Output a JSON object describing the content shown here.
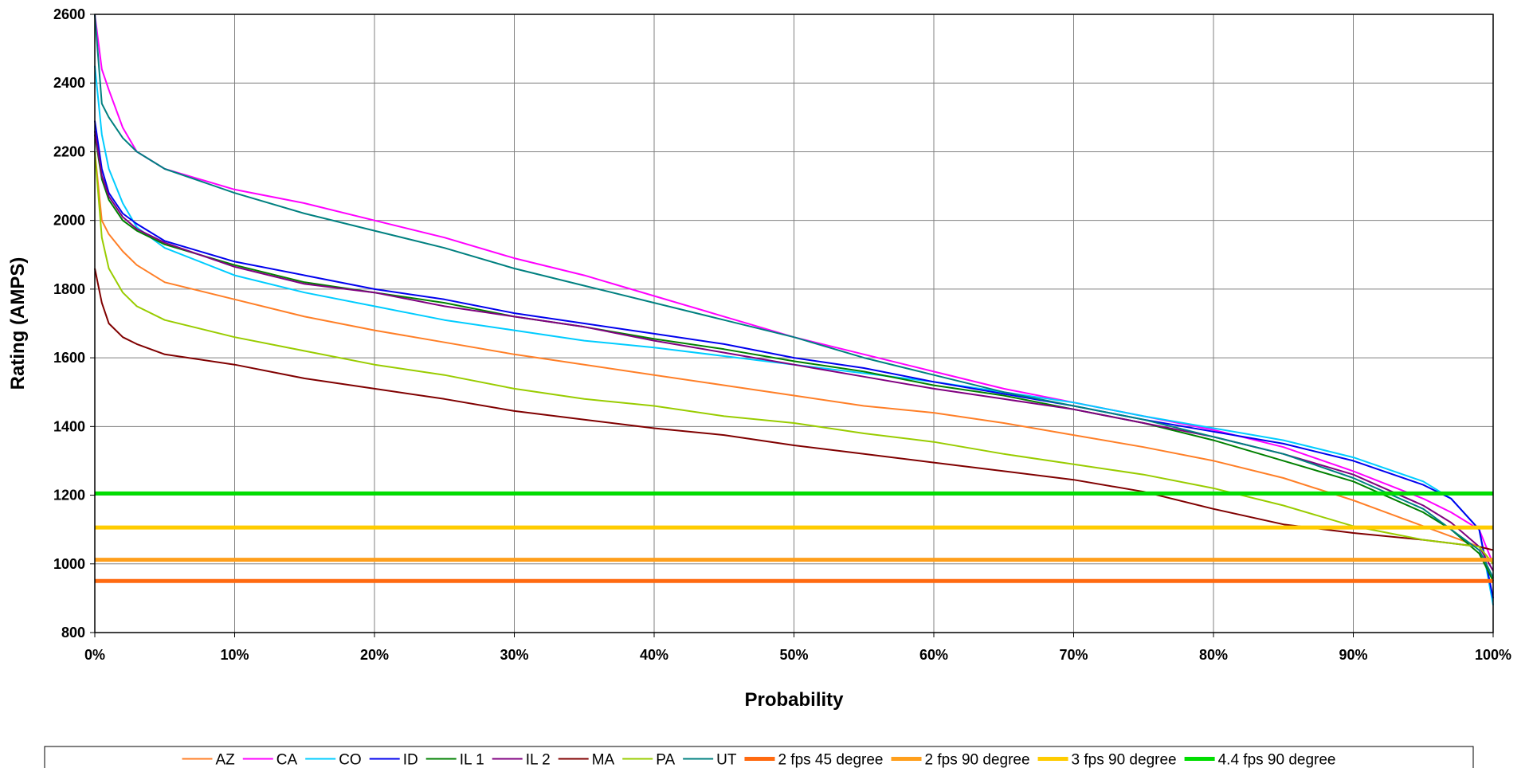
{
  "chart_data": {
    "type": "line",
    "xlabel": "Probability",
    "ylabel": "Rating (AMPS)",
    "xlim": [
      0,
      100
    ],
    "ylim": [
      800,
      2600
    ],
    "x_ticks": [
      "0%",
      "10%",
      "20%",
      "30%",
      "40%",
      "50%",
      "60%",
      "70%",
      "80%",
      "90%",
      "100%"
    ],
    "y_ticks": [
      "800",
      "1000",
      "1200",
      "1400",
      "1600",
      "1800",
      "2000",
      "2200",
      "2400",
      "2600"
    ],
    "grid": true,
    "legend_position": "bottom",
    "x": [
      0,
      0.5,
      1,
      2,
      3,
      5,
      10,
      15,
      20,
      25,
      30,
      35,
      40,
      45,
      50,
      55,
      60,
      65,
      70,
      75,
      80,
      85,
      90,
      95,
      97,
      99,
      100
    ],
    "series": [
      {
        "name": "AZ",
        "color": "#FF7F27",
        "width": 2,
        "values": [
          2200,
          2000,
          1960,
          1910,
          1870,
          1820,
          1770,
          1720,
          1680,
          1645,
          1610,
          1580,
          1550,
          1520,
          1490,
          1460,
          1440,
          1410,
          1375,
          1340,
          1300,
          1250,
          1185,
          1110,
          1080,
          1050,
          1000
        ]
      },
      {
        "name": "CA",
        "color": "#FF00FF",
        "width": 2,
        "values": [
          2600,
          2440,
          2380,
          2270,
          2200,
          2150,
          2090,
          2050,
          2000,
          1950,
          1890,
          1840,
          1780,
          1720,
          1660,
          1610,
          1560,
          1510,
          1470,
          1430,
          1390,
          1340,
          1270,
          1190,
          1150,
          1100,
          1000
        ]
      },
      {
        "name": "CO",
        "color": "#00CCFF",
        "width": 2,
        "values": [
          2450,
          2250,
          2150,
          2050,
          1980,
          1920,
          1840,
          1790,
          1750,
          1710,
          1680,
          1650,
          1630,
          1605,
          1580,
          1555,
          1530,
          1500,
          1470,
          1430,
          1395,
          1360,
          1310,
          1240,
          1190,
          1100,
          880
        ]
      },
      {
        "name": "ID",
        "color": "#0000EE",
        "width": 2,
        "values": [
          2290,
          2150,
          2080,
          2020,
          1990,
          1940,
          1880,
          1840,
          1800,
          1770,
          1730,
          1700,
          1670,
          1640,
          1600,
          1570,
          1530,
          1495,
          1460,
          1420,
          1385,
          1350,
          1300,
          1230,
          1190,
          1100,
          900
        ]
      },
      {
        "name": "IL 1",
        "color": "#008000",
        "width": 2,
        "values": [
          2250,
          2120,
          2060,
          2000,
          1970,
          1930,
          1870,
          1820,
          1790,
          1760,
          1720,
          1690,
          1655,
          1625,
          1590,
          1560,
          1520,
          1490,
          1450,
          1410,
          1360,
          1300,
          1240,
          1150,
          1100,
          1030,
          950
        ]
      },
      {
        "name": "IL 2",
        "color": "#800080",
        "width": 2,
        "values": [
          2260,
          2130,
          2070,
          2010,
          1975,
          1935,
          1865,
          1815,
          1790,
          1750,
          1720,
          1690,
          1650,
          1615,
          1580,
          1545,
          1510,
          1480,
          1450,
          1410,
          1370,
          1320,
          1260,
          1170,
          1120,
          1050,
          980
        ]
      },
      {
        "name": "MA",
        "color": "#800000",
        "width": 2,
        "values": [
          1860,
          1760,
          1700,
          1660,
          1640,
          1610,
          1580,
          1540,
          1510,
          1480,
          1445,
          1420,
          1395,
          1375,
          1345,
          1320,
          1295,
          1270,
          1245,
          1210,
          1160,
          1115,
          1090,
          1070,
          1060,
          1050,
          1040
        ]
      },
      {
        "name": "PA",
        "color": "#99CC00",
        "width": 2,
        "values": [
          2200,
          1950,
          1860,
          1790,
          1750,
          1710,
          1660,
          1620,
          1580,
          1550,
          1510,
          1480,
          1460,
          1430,
          1410,
          1380,
          1355,
          1320,
          1290,
          1260,
          1220,
          1170,
          1110,
          1070,
          1060,
          1050,
          1000
        ]
      },
      {
        "name": "UT",
        "color": "#008080",
        "width": 2,
        "values": [
          2600,
          2340,
          2300,
          2240,
          2200,
          2150,
          2080,
          2020,
          1970,
          1920,
          1860,
          1810,
          1760,
          1710,
          1660,
          1600,
          1550,
          1500,
          1460,
          1420,
          1370,
          1320,
          1250,
          1160,
          1100,
          1040,
          960
        ]
      },
      {
        "name": "2 fps 45 degree",
        "color": "#FF6A10",
        "width": 5,
        "values": [
          950,
          950,
          950,
          950,
          950,
          950,
          950,
          950,
          950,
          950,
          950,
          950,
          950,
          950,
          950,
          950,
          950,
          950,
          950,
          950,
          950,
          950,
          950,
          950,
          950,
          950,
          950
        ]
      },
      {
        "name": "2 fps 90 degree",
        "color": "#FF9F1C",
        "width": 5,
        "values": [
          1012,
          1012,
          1012,
          1012,
          1012,
          1012,
          1012,
          1012,
          1012,
          1012,
          1012,
          1012,
          1012,
          1012,
          1012,
          1012,
          1012,
          1012,
          1012,
          1012,
          1012,
          1012,
          1012,
          1012,
          1012,
          1012,
          1012
        ]
      },
      {
        "name": "3 fps 90 degree",
        "color": "#FFCC00",
        "width": 5,
        "values": [
          1106,
          1106,
          1106,
          1106,
          1106,
          1106,
          1106,
          1106,
          1106,
          1106,
          1106,
          1106,
          1106,
          1106,
          1106,
          1106,
          1106,
          1106,
          1106,
          1106,
          1106,
          1106,
          1106,
          1106,
          1106,
          1106,
          1106
        ]
      },
      {
        "name": "4.4 fps 90 degree",
        "color": "#00DD00",
        "width": 5,
        "values": [
          1205,
          1205,
          1205,
          1205,
          1205,
          1205,
          1205,
          1205,
          1205,
          1205,
          1205,
          1205,
          1205,
          1205,
          1205,
          1205,
          1205,
          1205,
          1205,
          1205,
          1205,
          1205,
          1205,
          1205,
          1205,
          1205,
          1205
        ]
      }
    ]
  }
}
